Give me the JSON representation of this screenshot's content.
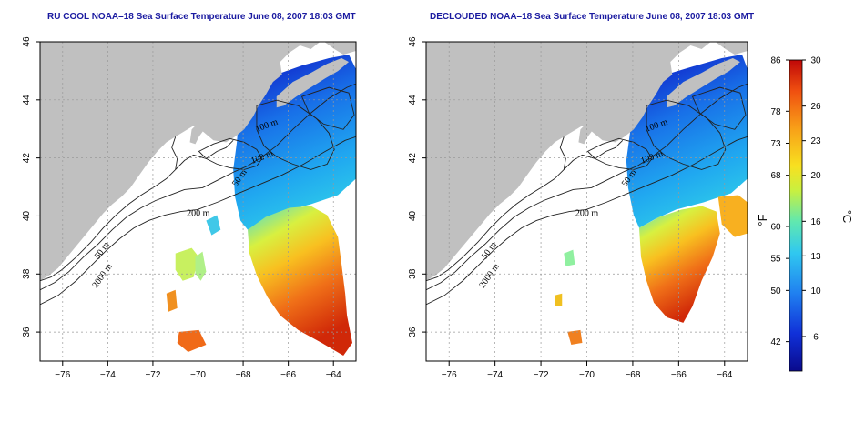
{
  "panels": [
    {
      "title": "RU COOL NOAA–18 Sea Surface Temperature June 08, 2007 18:03 GMT"
    },
    {
      "title": "DECLOUDED NOAA–18 Sea Surface Temperature June 08, 2007 18:03 GMT"
    }
  ],
  "axes": {
    "x_ticks": [
      -76,
      -74,
      -72,
      -70,
      -68,
      -66,
      -64
    ],
    "y_ticks": [
      36,
      38,
      40,
      42,
      44,
      46
    ],
    "x_labels": [
      "−76",
      "−74",
      "−72",
      "−70",
      "−68",
      "−66",
      "−64"
    ],
    "y_labels": [
      "36",
      "38",
      "40",
      "42",
      "44",
      "46"
    ],
    "lon_range": [
      -77,
      -63
    ],
    "lat_range": [
      35,
      46
    ],
    "grid": true
  },
  "contours": {
    "labels": [
      "100 m",
      "100 m",
      "200 m",
      "50 m",
      "50 m",
      "2000 m"
    ]
  },
  "colorbar": {
    "celsius_ticks": [
      6,
      10,
      13,
      16,
      20,
      23,
      26,
      30
    ],
    "fahrenheit_ticks": [
      42,
      50,
      55,
      60,
      68,
      73,
      78,
      86
    ],
    "celsius_labels": [
      "6",
      "10",
      "13",
      "16",
      "20",
      "23",
      "26",
      "30"
    ],
    "fahrenheit_labels": [
      "42",
      "50",
      "55",
      "60",
      "68",
      "73",
      "78",
      "86"
    ],
    "unit_f": "°F",
    "unit_c": "°C",
    "range_c": [
      3,
      30
    ],
    "colors": [
      "#0a0a8c",
      "#1030d8",
      "#2080f0",
      "#30c8f0",
      "#60e8b0",
      "#c8f040",
      "#f8e020",
      "#f8a018",
      "#f05010",
      "#c00808"
    ]
  },
  "colors": {
    "land": "#c0c0c0",
    "water_nodata": "#ffffff",
    "title": "#1a1aa0"
  }
}
